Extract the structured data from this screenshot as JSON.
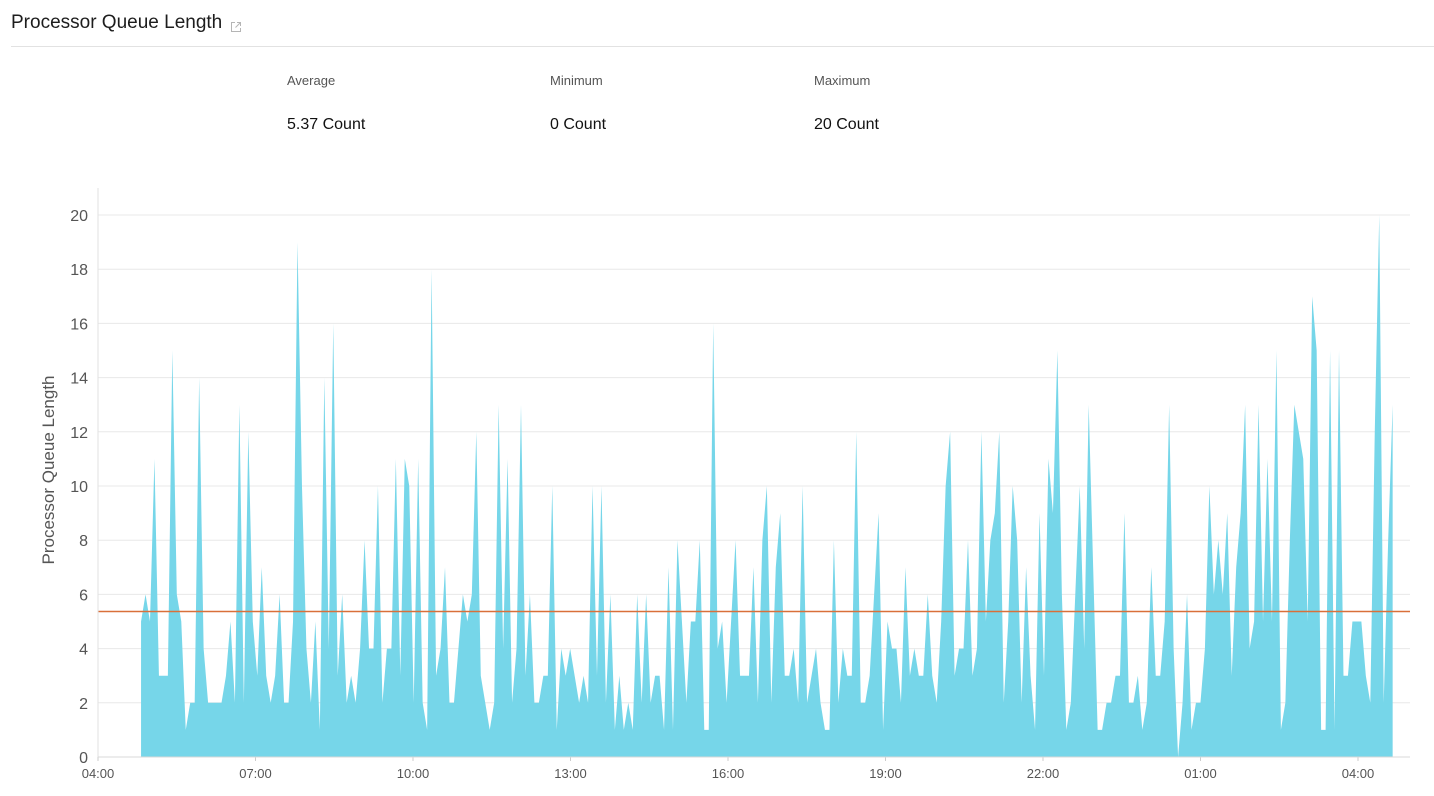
{
  "header": {
    "title": "Processor Queue Length",
    "external_link_icon": "external-link-icon"
  },
  "stats": [
    {
      "label": "Average",
      "value": "5.37 Count"
    },
    {
      "label": "Minimum",
      "value": "0 Count"
    },
    {
      "label": "Maximum",
      "value": "20 Count"
    }
  ],
  "colors": {
    "area": "#76d6e9",
    "average_line": "#d9703a",
    "grid": "#e8e8e8"
  },
  "chart_data": {
    "type": "area",
    "title": "",
    "ylabel": "Processor Queue Length",
    "xlabel": "",
    "ylim": [
      0,
      20
    ],
    "y_ticks": [
      "0",
      "2",
      "4",
      "6",
      "8",
      "10",
      "12",
      "14",
      "16",
      "18",
      "20"
    ],
    "x_ticks": [
      "04:00",
      "07:00",
      "10:00",
      "13:00",
      "16:00",
      "19:00",
      "22:00",
      "01:00",
      "04:00"
    ],
    "x_range_hours": [
      0,
      25.1
    ],
    "series_start_hour": 0.82,
    "series_end_hour": 24.66,
    "grid": true,
    "average_line": 5.37,
    "series": [
      {
        "values": [
          5,
          6,
          5,
          11,
          3,
          3,
          3,
          15,
          6,
          5,
          1,
          2,
          2,
          14,
          4,
          2,
          2,
          2,
          2,
          3,
          5,
          2,
          13,
          2,
          12,
          5,
          3,
          7,
          3,
          2,
          3,
          6,
          2,
          2,
          5,
          19,
          10,
          4,
          2,
          5,
          1,
          14,
          4,
          16,
          3,
          6,
          2,
          3,
          2,
          4,
          8,
          4,
          4,
          10,
          2,
          4,
          4,
          11,
          3,
          11,
          10,
          2,
          11,
          2,
          1,
          18,
          3,
          4,
          7,
          2,
          2,
          4,
          6,
          5,
          6,
          12,
          3,
          2,
          1,
          2,
          13,
          4,
          11,
          2,
          4,
          13,
          3,
          6,
          2,
          2,
          3,
          3,
          10,
          1,
          4,
          3,
          4,
          3,
          2,
          3,
          2,
          10,
          3,
          10,
          2,
          6,
          1,
          3,
          1,
          2,
          1,
          6,
          2,
          6,
          2,
          3,
          3,
          1,
          7,
          1,
          8,
          5,
          2,
          5,
          5,
          8,
          1,
          1,
          16,
          4,
          5,
          2,
          5,
          8,
          3,
          3,
          3,
          7,
          2,
          8,
          10,
          2,
          7,
          9,
          3,
          3,
          4,
          2,
          10,
          2,
          3,
          4,
          2,
          1,
          1,
          8,
          2,
          4,
          3,
          3,
          12,
          2,
          2,
          3,
          6,
          9,
          1,
          5,
          4,
          4,
          2,
          7,
          3,
          4,
          3,
          3,
          6,
          3,
          2,
          5,
          10,
          12,
          3,
          4,
          4,
          8,
          3,
          4,
          12,
          5,
          8,
          9,
          12,
          2,
          5,
          10,
          8,
          2,
          7,
          3,
          1,
          9,
          3,
          11,
          9,
          15,
          6,
          1,
          2,
          6,
          10,
          4,
          13,
          7,
          1,
          1,
          2,
          2,
          3,
          3,
          9,
          2,
          2,
          3,
          1,
          2,
          7,
          3,
          3,
          5,
          13,
          4,
          0,
          2,
          6,
          1,
          2,
          2,
          4,
          10,
          6,
          8,
          6,
          9,
          3,
          7,
          9,
          13,
          4,
          5,
          13,
          5,
          11,
          5,
          15,
          1,
          2,
          8,
          13,
          12,
          11,
          5,
          17,
          15,
          1,
          1,
          15,
          1,
          15,
          3,
          3,
          5,
          5,
          5,
          3,
          2,
          12,
          20,
          2,
          8,
          13
        ]
      }
    ]
  }
}
